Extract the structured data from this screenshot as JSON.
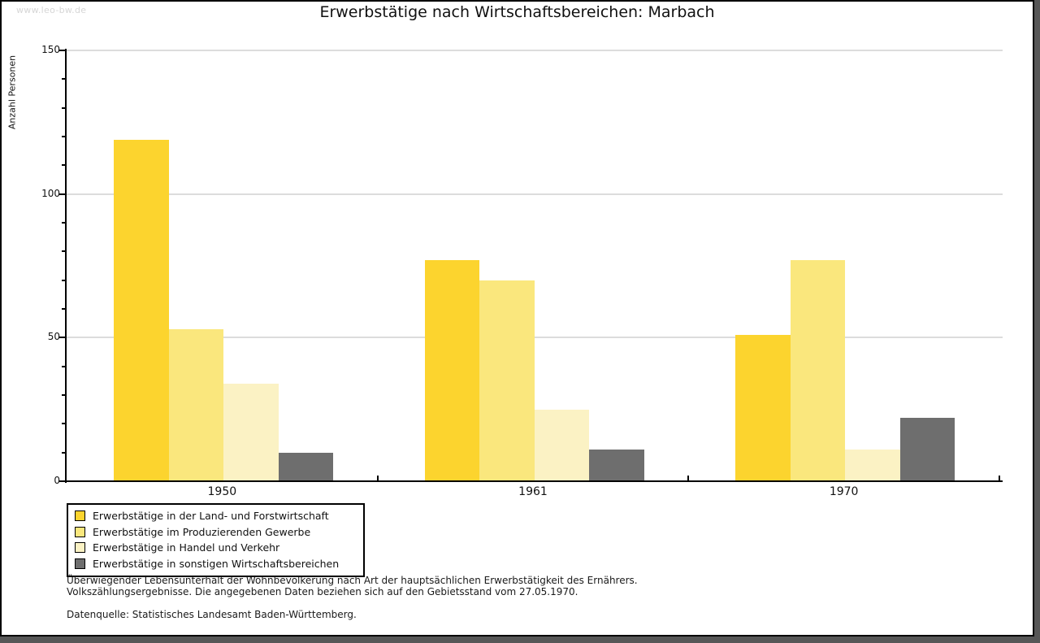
{
  "watermark": "www.leo-bw.de",
  "title": "Erwerbstätige nach Wirtschaftsbereichen: Marbach",
  "footnotes": {
    "line1": "Überwiegender Lebensunterhalt der Wohnbevölkerung nach Art der hauptsächlichen Erwerbstätigkeit des Ernährers.",
    "line2": "Volkszählungsergebnisse. Die angegebenen Daten beziehen sich auf den Gebietsstand vom 27.05.1970.",
    "source": "Datenquelle: Statistisches Landesamt Baden-Württemberg."
  },
  "chart_data": {
    "type": "bar",
    "title": "Erwerbstätige nach Wirtschaftsbereichen: Marbach",
    "xlabel": "",
    "ylabel": "Anzahl Personen",
    "categories": [
      "1950",
      "1961",
      "1970"
    ],
    "series": [
      {
        "name": "Erwerbstätige in der Land- und Forstwirtschaft",
        "color": "#FCD42E",
        "values": [
          119,
          77,
          51
        ]
      },
      {
        "name": "Erwerbstätige im Produzierenden Gewerbe",
        "color": "#FAE77D",
        "values": [
          53,
          70,
          77
        ]
      },
      {
        "name": "Erwerbstätige in Handel und Verkehr",
        "color": "#FBF2C4",
        "values": [
          34,
          25,
          11
        ]
      },
      {
        "name": "Erwerbstätige in sonstigen Wirtschaftsbereichen",
        "color": "#6E6E6E",
        "values": [
          10,
          11,
          22
        ]
      }
    ],
    "ylim": [
      0,
      150
    ],
    "ytick_major": 50,
    "ytick_minor": 10,
    "grid": "horizontal-major",
    "legend_position": "bottom-left",
    "colors": {
      "gridline": "#DCDCDC",
      "axis": "#000000",
      "frame_shadow": "#575757",
      "watermark_text": "#D6D6D6"
    }
  }
}
